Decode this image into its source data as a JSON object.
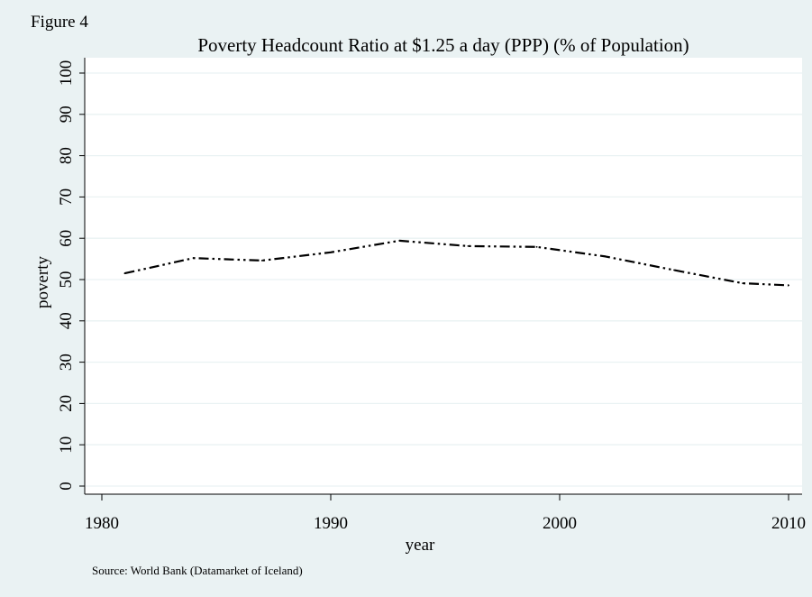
{
  "figure_label": "Figure 4",
  "source_note": "Source: World Bank (Datamarket of Iceland)",
  "colors": {
    "outer_background": "#eaf2f3",
    "plot_background": "#ffffff",
    "gridline": "#eaf2f3",
    "line": "#000000"
  },
  "chart_data": {
    "type": "line",
    "title": "Poverty Headcount Ratio at $1.25 a day (PPP) (% of Population)",
    "xlabel": "year",
    "ylabel": "poverty",
    "xlim": [
      1980,
      2010
    ],
    "ylim": [
      0,
      100
    ],
    "xticks": [
      1980,
      1990,
      2000,
      2010
    ],
    "yticks": [
      0,
      10,
      20,
      30,
      40,
      50,
      60,
      70,
      80,
      90,
      100
    ],
    "grid": true,
    "line_style": "dash-dot-dot",
    "series": [
      {
        "x": [
          1981,
          1984,
          1987,
          1990,
          1993,
          1996,
          1999,
          2002,
          2005,
          2008,
          2010
        ],
        "y": [
          51.5,
          55.2,
          54.6,
          56.6,
          59.4,
          58.1,
          57.9,
          55.6,
          52.3,
          49.1,
          48.6
        ]
      }
    ]
  }
}
